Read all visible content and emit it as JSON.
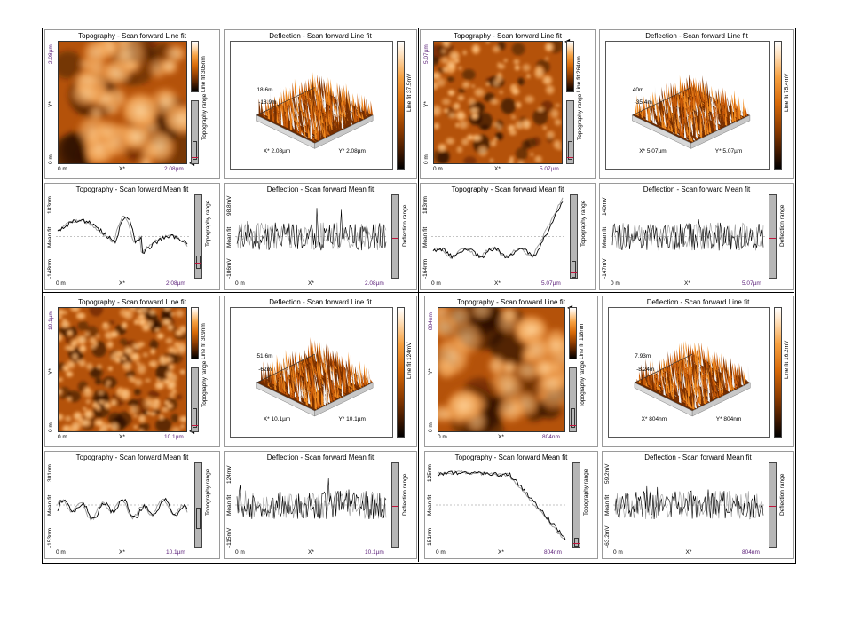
{
  "quadrants": [
    {
      "topo_line": {
        "title": "Topography - Scan forward   Line fit",
        "y_top": "2.08µm",
        "y_mid": "Y*",
        "y_bottom": "0 m",
        "x_left": "0 m",
        "x_mid": "X*",
        "x_right": "2.08µm",
        "cbar_label": "Line fit 305nm",
        "range_label": "Topography range"
      },
      "defl_line": {
        "title": "Deflection - Scan forward   Line fit",
        "z_top": "18.6m",
        "z_bot": "-18.9m",
        "x_axis": "X* 2.08µm",
        "y_axis": "Y* 2.08µm",
        "cbar_label": "Line fit 37.5mV"
      },
      "topo_mean": {
        "title": "Topography - Scan forward   Mean fit",
        "y_top": "183nm",
        "y_mid": "Mean fit",
        "y_bottom": "-148nm",
        "x_left": "0 m",
        "x_mid": "X*",
        "x_right": "2.08µm",
        "range_label": "Topography range"
      },
      "defl_mean": {
        "title": "Deflection - Scan forward   Mean fit",
        "y_top": "98.8mV",
        "y_mid": "Mean fit",
        "y_bottom": "-106mV",
        "x_left": "0 m",
        "x_mid": "X*",
        "x_right": "2.08µm",
        "range_label": "Deflection range"
      }
    },
    {
      "topo_line": {
        "title": "Topography - Scan forward   Line fit",
        "y_top": "5.07µm",
        "y_mid": "Y*",
        "y_bottom": "0 m",
        "x_left": "0 m",
        "x_mid": "X*",
        "x_right": "5.07µm",
        "cbar_label": "Line fit 264nm",
        "range_label": "Topography range"
      },
      "defl_line": {
        "title": "Deflection - Scan forward   Line fit",
        "z_top": "40m",
        "z_bot": "-35.4m",
        "x_axis": "X* 5.07µm",
        "y_axis": "Y* 5.07µm",
        "cbar_label": "Line fit 75.4mV"
      },
      "topo_mean": {
        "title": "Topography - Scan forward   Mean fit",
        "y_top": "183nm",
        "y_mid": "Mean fit",
        "y_bottom": "-164nm",
        "x_left": "0 m",
        "x_mid": "X*",
        "x_right": "5.07µm",
        "range_label": "Topography range"
      },
      "defl_mean": {
        "title": "Deflection - Scan forward   Mean fit",
        "y_top": "140mV",
        "y_mid": "Mean fit",
        "y_bottom": "-147mV",
        "x_left": "0 m",
        "x_mid": "X*",
        "x_right": "5.07µm",
        "range_label": "Deflection range"
      }
    },
    {
      "topo_line": {
        "title": "Topography - Scan forward   Line fit",
        "y_top": "10.1µm",
        "y_mid": "Y*",
        "y_bottom": "0 m",
        "x_left": "0 m",
        "x_mid": "X*",
        "x_right": "10.1µm",
        "cbar_label": "Line fit 309nm",
        "range_label": "Topography range"
      },
      "defl_line": {
        "title": "Deflection - Scan forward   Line fit",
        "z_top": "51.6m",
        "z_bot": "-62m",
        "x_axis": "X* 10.1µm",
        "y_axis": "Y* 10.1µm",
        "cbar_label": "Line fit 124mV"
      },
      "topo_mean": {
        "title": "Topography - Scan forward   Mean fit",
        "y_top": "301nm",
        "y_mid": "Mean fit",
        "y_bottom": "-153nm",
        "x_left": "0 m",
        "x_mid": "X*",
        "x_right": "10.1µm",
        "range_label": "Topography range"
      },
      "defl_mean": {
        "title": "Deflection - Scan forward   Mean fit",
        "y_top": "124mV",
        "y_mid": "Mean fit",
        "y_bottom": "-115mV",
        "x_left": "0 m",
        "x_mid": "X*",
        "x_right": "10.1µm",
        "range_label": "Deflection range"
      }
    },
    {
      "topo_line": {
        "title": "Topography - Scan forward   Line fit",
        "y_top": "804nm",
        "y_mid": "Y*",
        "y_bottom": "0 m",
        "x_left": "0 m",
        "x_mid": "X*",
        "x_right": "804nm",
        "cbar_label": "Line fit 118nm",
        "range_label": "Topography range"
      },
      "defl_line": {
        "title": "Deflection - Scan forward   Line fit",
        "z_top": "7.93m",
        "z_bot": "-8.24m",
        "x_axis": "X* 804nm",
        "y_axis": "Y* 804nm",
        "cbar_label": "Line fit 16.2mV"
      },
      "topo_mean": {
        "title": "Topography - Scan forward   Mean fit",
        "y_top": "125nm",
        "y_mid": "Mean fit",
        "y_bottom": "-151nm",
        "x_left": "0 m",
        "x_mid": "X*",
        "x_right": "804nm",
        "range_label": "Topography range"
      },
      "defl_mean": {
        "title": "Deflection - Scan forward   Mean fit",
        "y_top": "59.2mV",
        "y_mid": "Mean fit",
        "y_bottom": "-63.2mV",
        "x_left": "0 m",
        "x_mid": "X*",
        "x_right": "804nm",
        "range_label": "Deflection range"
      }
    }
  ],
  "colors": {
    "afm_dark": "#2b0f00",
    "afm_mid": "#c85a08",
    "afm_light": "#ffd49a",
    "mean_line": "#888888",
    "marker": "#c0143c",
    "curve_main": "#000000",
    "curve_retrace": "#9a9a9a"
  }
}
